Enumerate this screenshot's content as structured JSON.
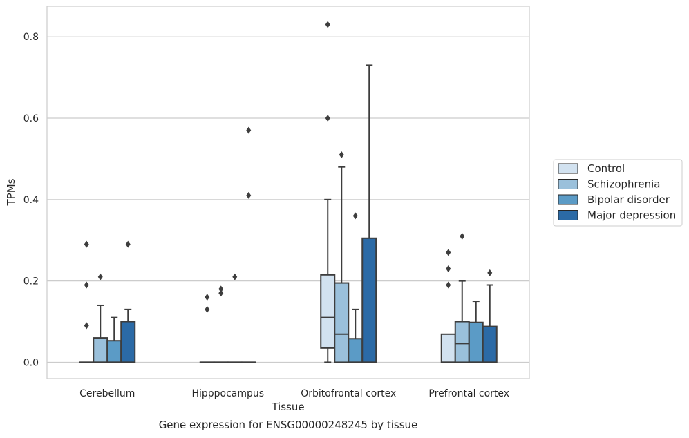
{
  "caption": "Gene expression for ENSG00000248245 by tissue",
  "chart_data": {
    "type": "box",
    "xlabel": "Tissue",
    "ylabel": "TPMs",
    "ylim": [
      -0.04,
      0.875
    ],
    "yticks": [
      0.0,
      0.2,
      0.4,
      0.6,
      0.8
    ],
    "ytick_labels": [
      "0.0",
      "0.2",
      "0.4",
      "0.6",
      "0.8"
    ],
    "grid": "horizontal",
    "legend_position": "right",
    "categories": [
      "Cerebellum",
      "Hipppocampus",
      "Orbitofrontal cortex",
      "Prefrontal cortex"
    ],
    "series": [
      {
        "name": "Control",
        "color": "#d2e2f0",
        "boxes": [
          {
            "min": 0,
            "q1": 0,
            "median": 0,
            "q3": 0,
            "max": 0,
            "outliers": [
              0.09,
              0.19,
              0.29
            ]
          },
          {
            "min": 0,
            "q1": 0,
            "median": 0,
            "q3": 0,
            "max": 0,
            "outliers": [
              0.13,
              0.16
            ]
          },
          {
            "min": 0,
            "q1": 0.035,
            "median": 0.11,
            "q3": 0.215,
            "max": 0.4,
            "outliers": [
              0.6,
              0.83
            ]
          },
          {
            "min": 0,
            "q1": 0,
            "median": 0,
            "q3": 0.069,
            "max": 0.069,
            "outliers": [
              0.19,
              0.23,
              0.27
            ]
          }
        ]
      },
      {
        "name": "Schizophrenia",
        "color": "#9ac0db",
        "boxes": [
          {
            "min": 0,
            "q1": 0,
            "median": 0,
            "q3": 0.06,
            "max": 0.14,
            "outliers": [
              0.21
            ]
          },
          {
            "min": 0,
            "q1": 0,
            "median": 0,
            "q3": 0,
            "max": 0,
            "outliers": [
              0.17,
              0.18
            ]
          },
          {
            "min": 0,
            "q1": 0,
            "median": 0.069,
            "q3": 0.195,
            "max": 0.48,
            "outliers": [
              0.51
            ]
          },
          {
            "min": 0,
            "q1": 0,
            "median": 0.046,
            "q3": 0.1,
            "max": 0.2,
            "outliers": [
              0.31
            ]
          }
        ]
      },
      {
        "name": "Bipolar disorder",
        "color": "#5b9bc6",
        "boxes": [
          {
            "min": 0,
            "q1": 0,
            "median": 0,
            "q3": 0.053,
            "max": 0.11,
            "outliers": []
          },
          {
            "min": 0,
            "q1": 0,
            "median": 0,
            "q3": 0,
            "max": 0,
            "outliers": [
              0.21
            ]
          },
          {
            "min": 0,
            "q1": 0,
            "median": 0,
            "q3": 0.058,
            "max": 0.13,
            "outliers": [
              0.36
            ]
          },
          {
            "min": 0,
            "q1": 0,
            "median": 0,
            "q3": 0.098,
            "max": 0.15,
            "outliers": []
          }
        ]
      },
      {
        "name": "Major depression",
        "color": "#2b6aa6",
        "boxes": [
          {
            "min": 0,
            "q1": 0,
            "median": 0,
            "q3": 0.1,
            "max": 0.13,
            "outliers": [
              0.29
            ]
          },
          {
            "min": 0,
            "q1": 0,
            "median": 0,
            "q3": 0,
            "max": 0,
            "outliers": [
              0.41,
              0.57
            ]
          },
          {
            "min": 0,
            "q1": 0,
            "median": 0,
            "q3": 0.305,
            "max": 0.73,
            "outliers": []
          },
          {
            "min": 0,
            "q1": 0,
            "median": 0,
            "q3": 0.088,
            "max": 0.19,
            "outliers": [
              0.22
            ]
          }
        ]
      }
    ]
  }
}
